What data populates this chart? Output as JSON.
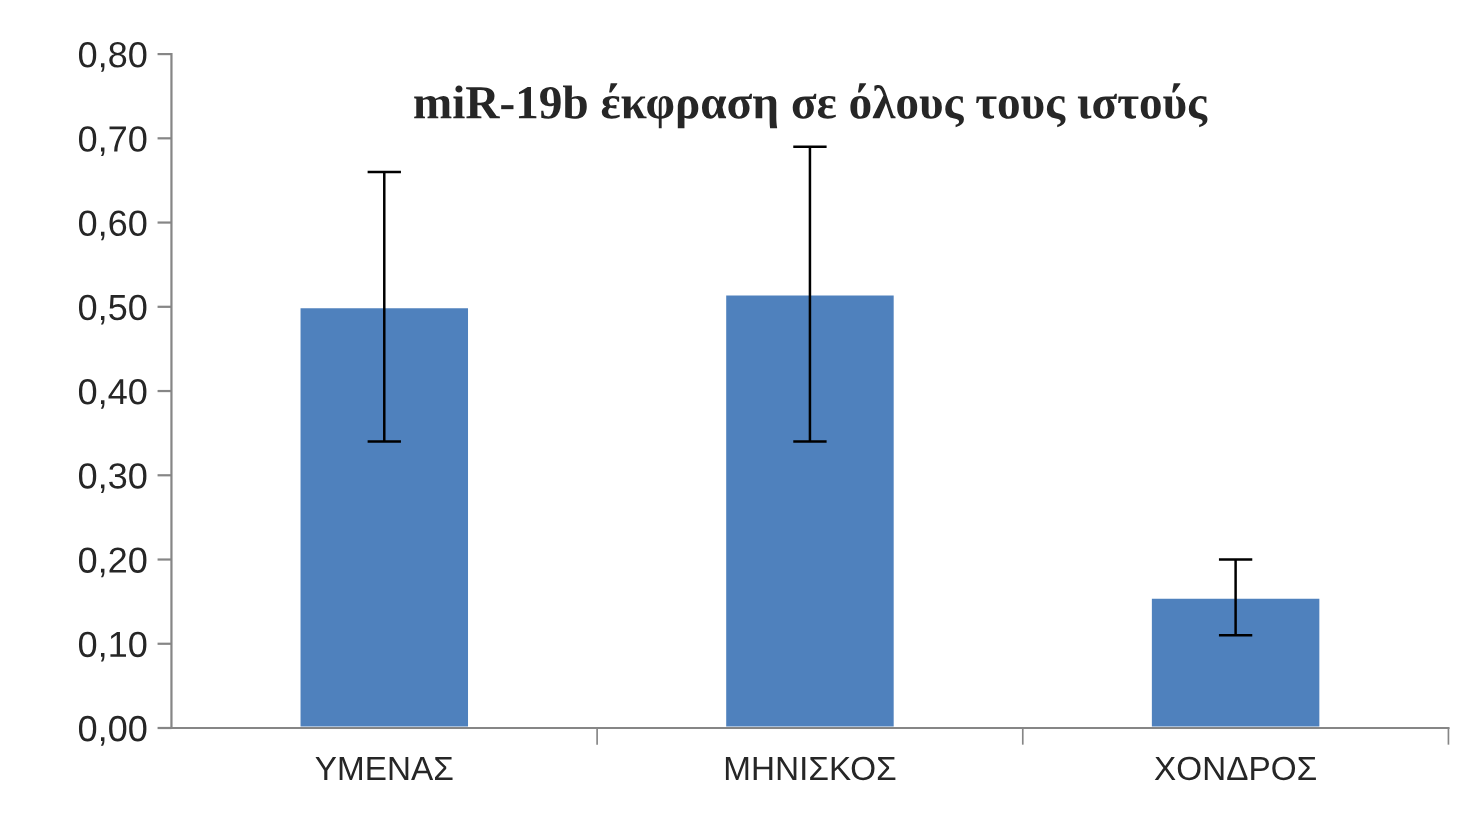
{
  "chart_data": {
    "type": "bar",
    "title": "miR-19b έκφραση σε όλους τους ιστούς",
    "categories": [
      "ΥΜΕΝΑΣ",
      "ΜΗΝΙΣΚΟΣ",
      "ΧΟΝΔΡΟΣ"
    ],
    "values": [
      0.5,
      0.515,
      0.155
    ],
    "errors": [
      0.16,
      0.175,
      0.045
    ],
    "color": "#4f81bd",
    "ylim": [
      0,
      0.8
    ],
    "yticks": [
      {
        "value": 0,
        "label": "0,00"
      },
      {
        "value": 0.1,
        "label": "0,10"
      },
      {
        "value": 0.2,
        "label": "0,20"
      },
      {
        "value": 0.3,
        "label": "0,30"
      },
      {
        "value": 0.4,
        "label": "0,40"
      },
      {
        "value": 0.5,
        "label": "0,50"
      },
      {
        "value": 0.6,
        "label": "0,60"
      },
      {
        "value": 0.7,
        "label": "0,70"
      },
      {
        "value": 0.8,
        "label": "0,80"
      }
    ],
    "grid": false,
    "legend": false
  }
}
